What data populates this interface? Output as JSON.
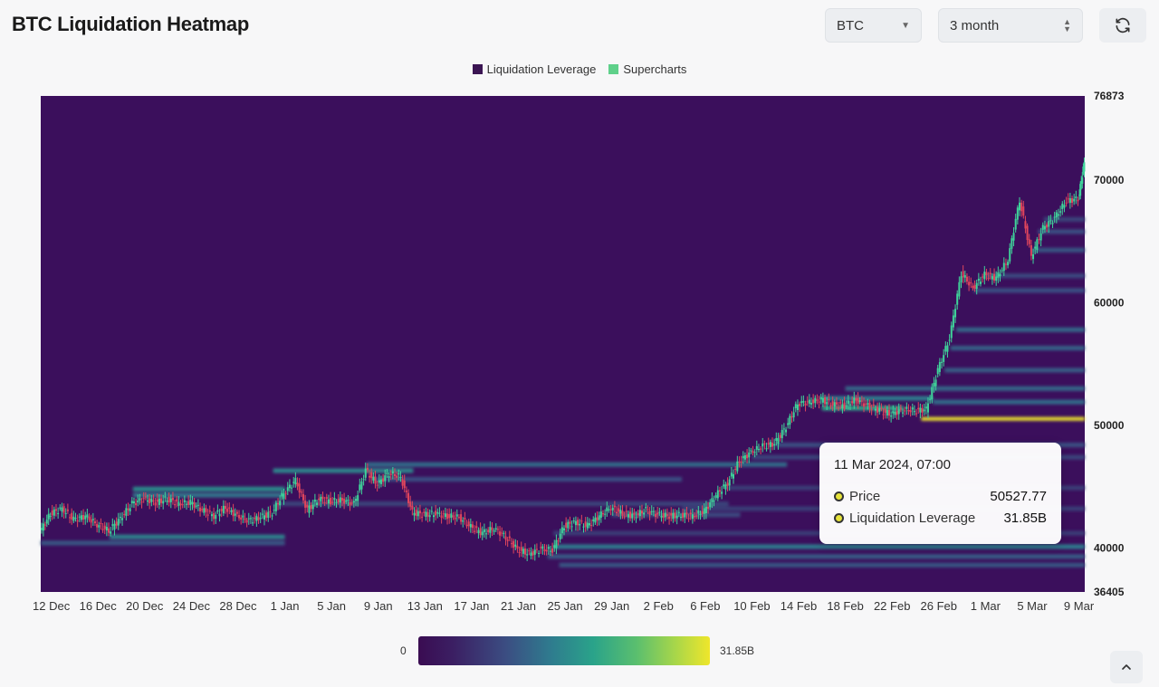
{
  "header": {
    "title": "BTC Liquidation Heatmap"
  },
  "controls": {
    "coin_select": "BTC",
    "range_select": "3 month"
  },
  "legend": [
    {
      "label": "Liquidation Leverage",
      "color": "#3b1553"
    },
    {
      "label": "Supercharts",
      "color": "#5fd08a"
    }
  ],
  "tooltip": {
    "title": "11 Mar 2024, 07:00",
    "price_label": "Price",
    "price_value": "50527.77",
    "leverage_label": "Liquidation Leverage",
    "leverage_value": "31.85B"
  },
  "colorbar": {
    "min_label": "0",
    "max_label": "31.85B"
  },
  "colors": {
    "background": "#3b0f5c",
    "up": "#3fd49a",
    "down": "#e0455c",
    "max_band": "#f3ee3a"
  },
  "chart_data": {
    "type": "heatmap",
    "title": "BTC Liquidation Heatmap",
    "x_tick_labels": [
      "12 Dec",
      "16 Dec",
      "20 Dec",
      "24 Dec",
      "28 Dec",
      "1 Jan",
      "5 Jan",
      "9 Jan",
      "13 Jan",
      "17 Jan",
      "21 Jan",
      "25 Jan",
      "29 Jan",
      "2 Feb",
      "6 Feb",
      "10 Feb",
      "14 Feb",
      "18 Feb",
      "22 Feb",
      "26 Feb",
      "1 Mar",
      "5 Mar",
      "9 Mar"
    ],
    "y_tick_labels": [
      "76873",
      "70000",
      "60000",
      "50000",
      "40000",
      "36405"
    ],
    "ylim": [
      36405,
      76873
    ],
    "y_ticks": [
      76873,
      70000,
      60000,
      50000,
      40000,
      36405
    ],
    "x_start_day": 11.1,
    "x_end_day": 100.5,
    "price_series": [
      {
        "day": 11.1,
        "close": 41300
      },
      {
        "day": 12,
        "close": 42800
      },
      {
        "day": 13,
        "close": 43200
      },
      {
        "day": 14,
        "close": 42300
      },
      {
        "day": 15,
        "close": 42600
      },
      {
        "day": 16,
        "close": 41900
      },
      {
        "day": 17,
        "close": 41400
      },
      {
        "day": 18,
        "close": 42400
      },
      {
        "day": 19,
        "close": 43600
      },
      {
        "day": 20,
        "close": 44000
      },
      {
        "day": 21,
        "close": 43700
      },
      {
        "day": 22,
        "close": 44000
      },
      {
        "day": 23,
        "close": 43600
      },
      {
        "day": 24,
        "close": 43700
      },
      {
        "day": 25,
        "close": 43100
      },
      {
        "day": 26,
        "close": 42600
      },
      {
        "day": 27,
        "close": 43300
      },
      {
        "day": 28,
        "close": 42600
      },
      {
        "day": 29,
        "close": 42200
      },
      {
        "day": 30,
        "close": 42500
      },
      {
        "day": 31,
        "close": 42900
      },
      {
        "day": 32,
        "close": 44500
      },
      {
        "day": 33,
        "close": 45500
      },
      {
        "day": 34,
        "close": 43100
      },
      {
        "day": 35,
        "close": 44000
      },
      {
        "day": 36,
        "close": 43800
      },
      {
        "day": 37,
        "close": 43900
      },
      {
        "day": 38,
        "close": 43600
      },
      {
        "day": 39,
        "close": 46300
      },
      {
        "day": 40,
        "close": 45200
      },
      {
        "day": 41,
        "close": 46100
      },
      {
        "day": 42,
        "close": 45800
      },
      {
        "day": 43,
        "close": 42900
      },
      {
        "day": 44,
        "close": 42700
      },
      {
        "day": 45,
        "close": 42800
      },
      {
        "day": 46,
        "close": 42600
      },
      {
        "day": 47,
        "close": 42500
      },
      {
        "day": 48,
        "close": 41700
      },
      {
        "day": 49,
        "close": 41200
      },
      {
        "day": 50,
        "close": 41600
      },
      {
        "day": 51,
        "close": 40900
      },
      {
        "day": 52,
        "close": 39900
      },
      {
        "day": 53,
        "close": 39500
      },
      {
        "day": 54,
        "close": 39900
      },
      {
        "day": 55,
        "close": 39800
      },
      {
        "day": 56,
        "close": 41800
      },
      {
        "day": 57,
        "close": 42100
      },
      {
        "day": 58,
        "close": 41800
      },
      {
        "day": 59,
        "close": 42600
      },
      {
        "day": 60,
        "close": 43300
      },
      {
        "day": 61,
        "close": 42800
      },
      {
        "day": 62,
        "close": 42600
      },
      {
        "day": 63,
        "close": 43100
      },
      {
        "day": 64,
        "close": 42700
      },
      {
        "day": 65,
        "close": 42600
      },
      {
        "day": 66,
        "close": 42700
      },
      {
        "day": 67,
        "close": 42600
      },
      {
        "day": 68,
        "close": 43000
      },
      {
        "day": 69,
        "close": 44300
      },
      {
        "day": 70,
        "close": 45300
      },
      {
        "day": 71,
        "close": 47100
      },
      {
        "day": 72,
        "close": 47800
      },
      {
        "day": 73,
        "close": 48300
      },
      {
        "day": 74,
        "close": 48500
      },
      {
        "day": 75,
        "close": 49900
      },
      {
        "day": 76,
        "close": 51800
      },
      {
        "day": 77,
        "close": 51900
      },
      {
        "day": 78,
        "close": 52100
      },
      {
        "day": 79,
        "close": 51700
      },
      {
        "day": 80,
        "close": 51600
      },
      {
        "day": 81,
        "close": 52100
      },
      {
        "day": 82,
        "close": 51600
      },
      {
        "day": 83,
        "close": 51200
      },
      {
        "day": 84,
        "close": 50900
      },
      {
        "day": 85,
        "close": 51300
      },
      {
        "day": 86,
        "close": 51200
      },
      {
        "day": 87,
        "close": 51300
      },
      {
        "day": 88,
        "close": 54500
      },
      {
        "day": 89,
        "close": 57100
      },
      {
        "day": 90,
        "close": 62400
      },
      {
        "day": 91,
        "close": 61200
      },
      {
        "day": 92,
        "close": 62300
      },
      {
        "day": 93,
        "close": 62000
      },
      {
        "day": 94,
        "close": 63500
      },
      {
        "day": 95,
        "close": 68400
      },
      {
        "day": 96,
        "close": 63800
      },
      {
        "day": 97,
        "close": 66100
      },
      {
        "day": 98,
        "close": 66900
      },
      {
        "day": 99,
        "close": 68300
      },
      {
        "day": 100,
        "close": 68500
      },
      {
        "day": 100.5,
        "close": 71400
      }
    ],
    "liquidation_bands": [
      {
        "price": 50527.77,
        "start_day": 86.5,
        "end_day": 100.5,
        "value": 31.85
      },
      {
        "price": 51400,
        "start_day": 78.0,
        "end_day": 85.0,
        "value": 14.0
      },
      {
        "price": 52200,
        "start_day": 78.0,
        "end_day": 87.5,
        "value": 9.0
      },
      {
        "price": 53000,
        "start_day": 80.0,
        "end_day": 100.5,
        "value": 6.5
      },
      {
        "price": 51900,
        "start_day": 87.5,
        "end_day": 100.5,
        "value": 7.0
      },
      {
        "price": 54500,
        "start_day": 88.5,
        "end_day": 100.5,
        "value": 5.5
      },
      {
        "price": 56300,
        "start_day": 89.0,
        "end_day": 100.5,
        "value": 6.0
      },
      {
        "price": 57800,
        "start_day": 89.5,
        "end_day": 100.5,
        "value": 6.5
      },
      {
        "price": 61000,
        "start_day": 91.0,
        "end_day": 100.5,
        "value": 4.5
      },
      {
        "price": 62200,
        "start_day": 92.0,
        "end_day": 100.5,
        "value": 4.0
      },
      {
        "price": 64300,
        "start_day": 96.0,
        "end_day": 100.5,
        "value": 5.0
      },
      {
        "price": 65800,
        "start_day": 96.5,
        "end_day": 100.5,
        "value": 4.5
      },
      {
        "price": 66800,
        "start_day": 97.0,
        "end_day": 100.5,
        "value": 3.5
      },
      {
        "price": 46800,
        "start_day": 39.0,
        "end_day": 75.0,
        "value": 7.0
      },
      {
        "price": 46300,
        "start_day": 31.0,
        "end_day": 43.0,
        "value": 10.0
      },
      {
        "price": 45600,
        "start_day": 39.5,
        "end_day": 66.0,
        "value": 4.5
      },
      {
        "price": 44800,
        "start_day": 19.0,
        "end_day": 32.0,
        "value": 11.0
      },
      {
        "price": 44300,
        "start_day": 19.0,
        "end_day": 32.0,
        "value": 8.0
      },
      {
        "price": 43600,
        "start_day": 31.0,
        "end_day": 70.0,
        "value": 3.5
      },
      {
        "price": 42700,
        "start_day": 60.0,
        "end_day": 71.0,
        "value": 4.0
      },
      {
        "price": 40900,
        "start_day": 17.0,
        "end_day": 32.0,
        "value": 9.5
      },
      {
        "price": 40400,
        "start_day": 11.1,
        "end_day": 32.0,
        "value": 5.0
      },
      {
        "price": 40100,
        "start_day": 55.0,
        "end_day": 100.5,
        "value": 8.5
      },
      {
        "price": 39300,
        "start_day": 54.5,
        "end_day": 100.5,
        "value": 5.5
      },
      {
        "price": 38600,
        "start_day": 55.5,
        "end_day": 100.5,
        "value": 5.0
      },
      {
        "price": 41200,
        "start_day": 55.0,
        "end_day": 100.5,
        "value": 3.0
      },
      {
        "price": 48400,
        "start_day": 74.0,
        "end_day": 100.5,
        "value": 4.5
      },
      {
        "price": 47400,
        "start_day": 72.0,
        "end_day": 100.5,
        "value": 3.5
      },
      {
        "price": 44900,
        "start_day": 70.0,
        "end_day": 100.5,
        "value": 3.0
      },
      {
        "price": 43200,
        "start_day": 66.0,
        "end_day": 100.5,
        "value": 3.0
      }
    ],
    "legend_position": "top-center",
    "grid": false
  }
}
